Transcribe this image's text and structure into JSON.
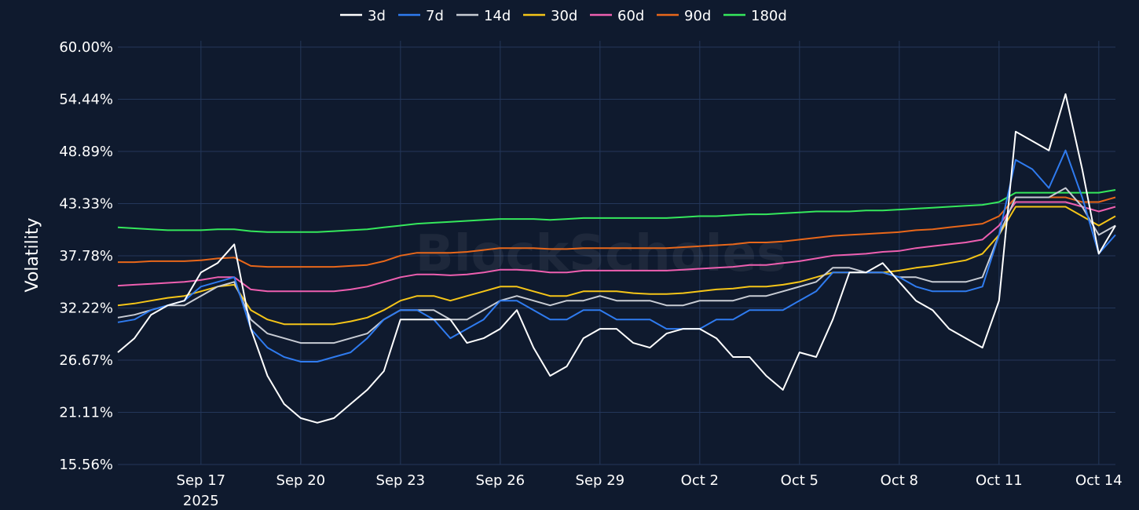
{
  "chart_data": {
    "type": "line",
    "title": "",
    "xlabel": "",
    "ylabel": "Volatility",
    "ylim": [
      0.1556,
      0.6
    ],
    "xlim": [
      "2025-09-14T12:00",
      "2025-10-14T12:00"
    ],
    "y_ticks": [
      "15.56%",
      "21.11%",
      "26.67%",
      "32.22%",
      "37.78%",
      "43.33%",
      "48.89%",
      "54.44%",
      "60.00%"
    ],
    "x_ticks": [
      {
        "date": "2025-09-17",
        "label": "Sep 17",
        "sublabel": "2025"
      },
      {
        "date": "2025-09-20",
        "label": "Sep 20",
        "sublabel": ""
      },
      {
        "date": "2025-09-23",
        "label": "Sep 23",
        "sublabel": ""
      },
      {
        "date": "2025-09-26",
        "label": "Sep 26",
        "sublabel": ""
      },
      {
        "date": "2025-09-29",
        "label": "Sep 29",
        "sublabel": ""
      },
      {
        "date": "2025-10-02",
        "label": "Oct 2",
        "sublabel": ""
      },
      {
        "date": "2025-10-05",
        "label": "Oct 5",
        "sublabel": ""
      },
      {
        "date": "2025-10-08",
        "label": "Oct 8",
        "sublabel": ""
      },
      {
        "date": "2025-10-11",
        "label": "Oct 11",
        "sublabel": ""
      },
      {
        "date": "2025-10-14",
        "label": "Oct 14",
        "sublabel": ""
      }
    ],
    "grid": true,
    "legend_position": "top-center",
    "watermark": "BlockScholes",
    "x": [
      "2025-09-14T12:00",
      "2025-09-15T00:00",
      "2025-09-15T12:00",
      "2025-09-16T00:00",
      "2025-09-16T12:00",
      "2025-09-17T00:00",
      "2025-09-17T12:00",
      "2025-09-18T00:00",
      "2025-09-18T12:00",
      "2025-09-19T00:00",
      "2025-09-19T12:00",
      "2025-09-20T00:00",
      "2025-09-20T12:00",
      "2025-09-21T00:00",
      "2025-09-21T12:00",
      "2025-09-22T00:00",
      "2025-09-22T12:00",
      "2025-09-23T00:00",
      "2025-09-23T12:00",
      "2025-09-24T00:00",
      "2025-09-24T12:00",
      "2025-09-25T00:00",
      "2025-09-25T12:00",
      "2025-09-26T00:00",
      "2025-09-26T12:00",
      "2025-09-27T00:00",
      "2025-09-27T12:00",
      "2025-09-28T00:00",
      "2025-09-28T12:00",
      "2025-09-29T00:00",
      "2025-09-29T12:00",
      "2025-09-30T00:00",
      "2025-09-30T12:00",
      "2025-10-01T00:00",
      "2025-10-01T12:00",
      "2025-10-02T00:00",
      "2025-10-02T12:00",
      "2025-10-03T00:00",
      "2025-10-03T12:00",
      "2025-10-04T00:00",
      "2025-10-04T12:00",
      "2025-10-05T00:00",
      "2025-10-05T12:00",
      "2025-10-06T00:00",
      "2025-10-06T12:00",
      "2025-10-07T00:00",
      "2025-10-07T12:00",
      "2025-10-08T00:00",
      "2025-10-08T12:00",
      "2025-10-09T00:00",
      "2025-10-09T12:00",
      "2025-10-10T00:00",
      "2025-10-10T12:00",
      "2025-10-11T00:00",
      "2025-10-11T12:00",
      "2025-10-12T00:00",
      "2025-10-12T12:00",
      "2025-10-13T00:00",
      "2025-10-13T12:00",
      "2025-10-14T00:00",
      "2025-10-14T12:00"
    ],
    "series": [
      {
        "name": "3d",
        "color": "#ffffff",
        "values": [
          0.275,
          0.29,
          0.315,
          0.325,
          0.33,
          0.36,
          0.37,
          0.39,
          0.3,
          0.25,
          0.22,
          0.205,
          0.2,
          0.205,
          0.22,
          0.235,
          0.255,
          0.31,
          0.31,
          0.31,
          0.31,
          0.285,
          0.29,
          0.3,
          0.32,
          0.28,
          0.25,
          0.26,
          0.29,
          0.3,
          0.3,
          0.285,
          0.28,
          0.295,
          0.3,
          0.3,
          0.29,
          0.27,
          0.27,
          0.25,
          0.235,
          0.275,
          0.27,
          0.31,
          0.36,
          0.36,
          0.37,
          0.35,
          0.33,
          0.32,
          0.3,
          0.29,
          0.28,
          0.33,
          0.51,
          0.5,
          0.49,
          0.55,
          0.47,
          0.38,
          0.41
        ]
      },
      {
        "name": "7d",
        "color": "#2f7bef",
        "values": [
          0.307,
          0.31,
          0.32,
          0.325,
          0.33,
          0.345,
          0.35,
          0.355,
          0.3,
          0.28,
          0.27,
          0.265,
          0.265,
          0.27,
          0.275,
          0.29,
          0.31,
          0.32,
          0.32,
          0.31,
          0.29,
          0.3,
          0.31,
          0.33,
          0.33,
          0.32,
          0.31,
          0.31,
          0.32,
          0.32,
          0.31,
          0.31,
          0.31,
          0.3,
          0.3,
          0.3,
          0.31,
          0.31,
          0.32,
          0.32,
          0.32,
          0.33,
          0.34,
          0.36,
          0.36,
          0.36,
          0.36,
          0.355,
          0.345,
          0.34,
          0.34,
          0.34,
          0.345,
          0.4,
          0.48,
          0.47,
          0.45,
          0.49,
          0.44,
          0.38,
          0.4
        ]
      },
      {
        "name": "14d",
        "color": "#c8ccd4",
        "values": [
          0.312,
          0.315,
          0.32,
          0.325,
          0.325,
          0.335,
          0.345,
          0.35,
          0.31,
          0.295,
          0.29,
          0.285,
          0.285,
          0.285,
          0.29,
          0.295,
          0.31,
          0.32,
          0.32,
          0.32,
          0.31,
          0.31,
          0.32,
          0.33,
          0.335,
          0.33,
          0.325,
          0.33,
          0.33,
          0.335,
          0.33,
          0.33,
          0.33,
          0.325,
          0.325,
          0.33,
          0.33,
          0.33,
          0.335,
          0.335,
          0.34,
          0.345,
          0.35,
          0.365,
          0.365,
          0.36,
          0.36,
          0.355,
          0.355,
          0.35,
          0.35,
          0.35,
          0.355,
          0.4,
          0.44,
          0.44,
          0.44,
          0.45,
          0.43,
          0.4,
          0.41
        ]
      },
      {
        "name": "30d",
        "color": "#f5c518",
        "values": [
          0.325,
          0.327,
          0.33,
          0.333,
          0.335,
          0.34,
          0.345,
          0.347,
          0.32,
          0.31,
          0.305,
          0.305,
          0.305,
          0.305,
          0.308,
          0.312,
          0.32,
          0.33,
          0.335,
          0.335,
          0.33,
          0.335,
          0.34,
          0.345,
          0.345,
          0.34,
          0.335,
          0.335,
          0.34,
          0.34,
          0.34,
          0.338,
          0.337,
          0.337,
          0.338,
          0.34,
          0.342,
          0.343,
          0.345,
          0.345,
          0.347,
          0.35,
          0.355,
          0.36,
          0.36,
          0.36,
          0.36,
          0.362,
          0.365,
          0.367,
          0.37,
          0.373,
          0.38,
          0.4,
          0.43,
          0.43,
          0.43,
          0.43,
          0.42,
          0.41,
          0.42
        ]
      },
      {
        "name": "60d",
        "color": "#ee5fb0",
        "values": [
          0.346,
          0.347,
          0.348,
          0.349,
          0.35,
          0.352,
          0.355,
          0.355,
          0.342,
          0.34,
          0.34,
          0.34,
          0.34,
          0.34,
          0.342,
          0.345,
          0.35,
          0.355,
          0.358,
          0.358,
          0.357,
          0.358,
          0.36,
          0.363,
          0.363,
          0.362,
          0.36,
          0.36,
          0.362,
          0.362,
          0.362,
          0.362,
          0.362,
          0.362,
          0.363,
          0.364,
          0.365,
          0.366,
          0.368,
          0.368,
          0.37,
          0.372,
          0.375,
          0.378,
          0.379,
          0.38,
          0.382,
          0.383,
          0.386,
          0.388,
          0.39,
          0.392,
          0.395,
          0.41,
          0.435,
          0.435,
          0.435,
          0.435,
          0.43,
          0.425,
          0.43
        ]
      },
      {
        "name": "90d",
        "color": "#e8671a",
        "values": [
          0.371,
          0.371,
          0.372,
          0.372,
          0.372,
          0.373,
          0.375,
          0.376,
          0.367,
          0.366,
          0.366,
          0.366,
          0.366,
          0.366,
          0.367,
          0.368,
          0.372,
          0.378,
          0.381,
          0.381,
          0.381,
          0.382,
          0.384,
          0.386,
          0.386,
          0.386,
          0.385,
          0.385,
          0.386,
          0.386,
          0.386,
          0.386,
          0.386,
          0.386,
          0.387,
          0.388,
          0.389,
          0.39,
          0.392,
          0.392,
          0.393,
          0.395,
          0.397,
          0.399,
          0.4,
          0.401,
          0.402,
          0.403,
          0.405,
          0.406,
          0.408,
          0.41,
          0.412,
          0.42,
          0.44,
          0.44,
          0.44,
          0.44,
          0.435,
          0.435,
          0.44
        ]
      },
      {
        "name": "180d",
        "color": "#35e85c",
        "values": [
          0.408,
          0.407,
          0.406,
          0.405,
          0.405,
          0.405,
          0.406,
          0.406,
          0.404,
          0.403,
          0.403,
          0.403,
          0.403,
          0.404,
          0.405,
          0.406,
          0.408,
          0.41,
          0.412,
          0.413,
          0.414,
          0.415,
          0.416,
          0.417,
          0.417,
          0.417,
          0.416,
          0.417,
          0.418,
          0.418,
          0.418,
          0.418,
          0.418,
          0.418,
          0.419,
          0.42,
          0.42,
          0.421,
          0.422,
          0.422,
          0.423,
          0.424,
          0.425,
          0.425,
          0.425,
          0.426,
          0.426,
          0.427,
          0.428,
          0.429,
          0.43,
          0.431,
          0.432,
          0.435,
          0.445,
          0.445,
          0.445,
          0.445,
          0.445,
          0.445,
          0.448
        ]
      }
    ]
  }
}
